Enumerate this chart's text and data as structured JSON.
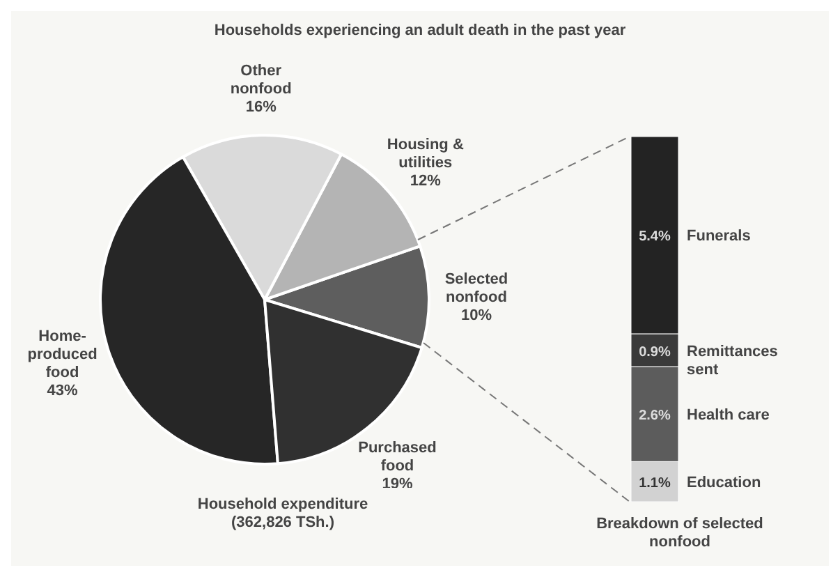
{
  "chart_data": [
    {
      "type": "pie",
      "title": "Households experiencing an adult death in the past year",
      "categories": [
        "Selected nonfood",
        "Housing & utilities",
        "Other nonfood",
        "Home-produced food",
        "Purchased food"
      ],
      "values": [
        10,
        12,
        16,
        43,
        19
      ],
      "value_labels": [
        "10%",
        "12%",
        "16%",
        "43%",
        "19%"
      ],
      "colors": [
        "#5e5e5e",
        "#b4b4b4",
        "#dadada",
        "#262626",
        "#303030"
      ],
      "annotations": [
        "Household expenditure (362,826 TSh.)"
      ]
    },
    {
      "type": "bar",
      "stacked": true,
      "categories": [
        null
      ],
      "xlabel": "Breakdown of selected nonfood",
      "series": [
        {
          "name": "Education",
          "color": "#d2d2d2",
          "values": [
            1.1
          ],
          "value_labels": [
            "1.1%"
          ]
        },
        {
          "name": "Health care",
          "color": "#5c5c5c",
          "values": [
            2.6
          ],
          "value_labels": [
            "2.6%"
          ]
        },
        {
          "name": "Remittances sent",
          "color": "#3a3a3a",
          "values": [
            0.9
          ],
          "value_labels": [
            "0.9%"
          ]
        },
        {
          "name": "Funerals",
          "color": "#232323",
          "values": [
            5.4
          ],
          "value_labels": [
            "5.4%"
          ]
        }
      ]
    }
  ]
}
